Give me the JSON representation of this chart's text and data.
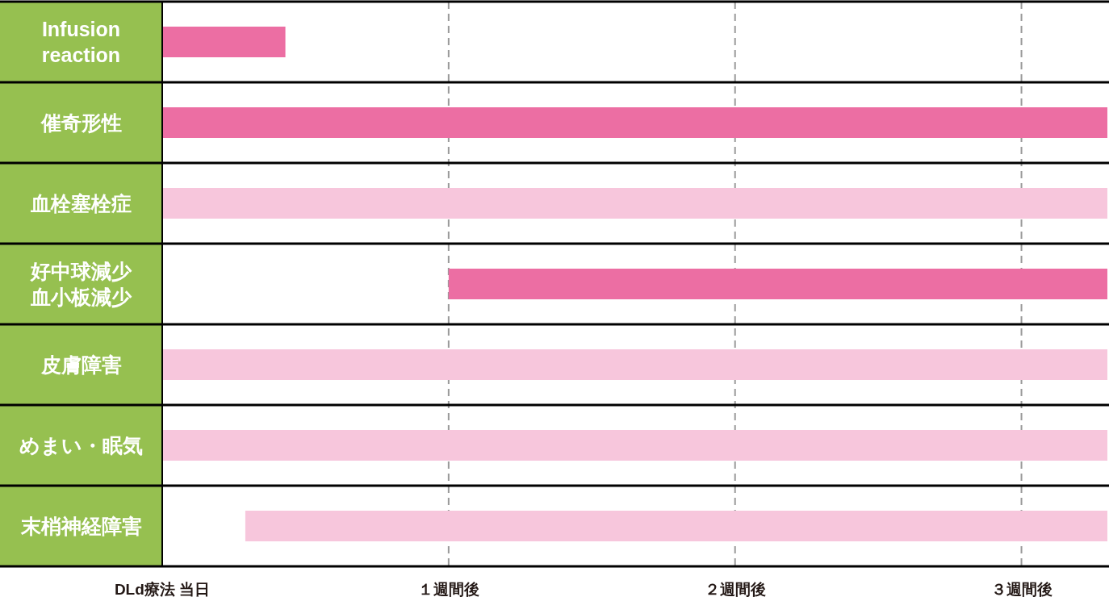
{
  "chart_data": {
    "type": "bar",
    "orientation": "horizontal",
    "categories": [
      "Infusion reaction",
      "催奇形性",
      "血栓塞栓症",
      "好中球減少血小板減少",
      "皮膚障害",
      "めまい・眠気",
      "末梢神経障害"
    ],
    "base": [
      0,
      0,
      0,
      1,
      0,
      0,
      0.29
    ],
    "values": [
      0.43,
      3.3,
      3.3,
      2.3,
      3.3,
      3.3,
      3.01
    ],
    "colors": [
      "#ec6ea3",
      "#ec6ea3",
      "#f7c6dc",
      "#ec6ea3",
      "#f7c6dc",
      "#f7c6dc",
      "#f7c6dc"
    ],
    "xlim": [
      0,
      3.3
    ],
    "xticks": [
      {
        "value": 0,
        "label": "DLd療法 当日"
      },
      {
        "value": 1,
        "label": "１週間後"
      },
      {
        "value": 2,
        "label": "２週間後"
      },
      {
        "value": 3,
        "label": "３週間後"
      }
    ],
    "grid": "x"
  }
}
